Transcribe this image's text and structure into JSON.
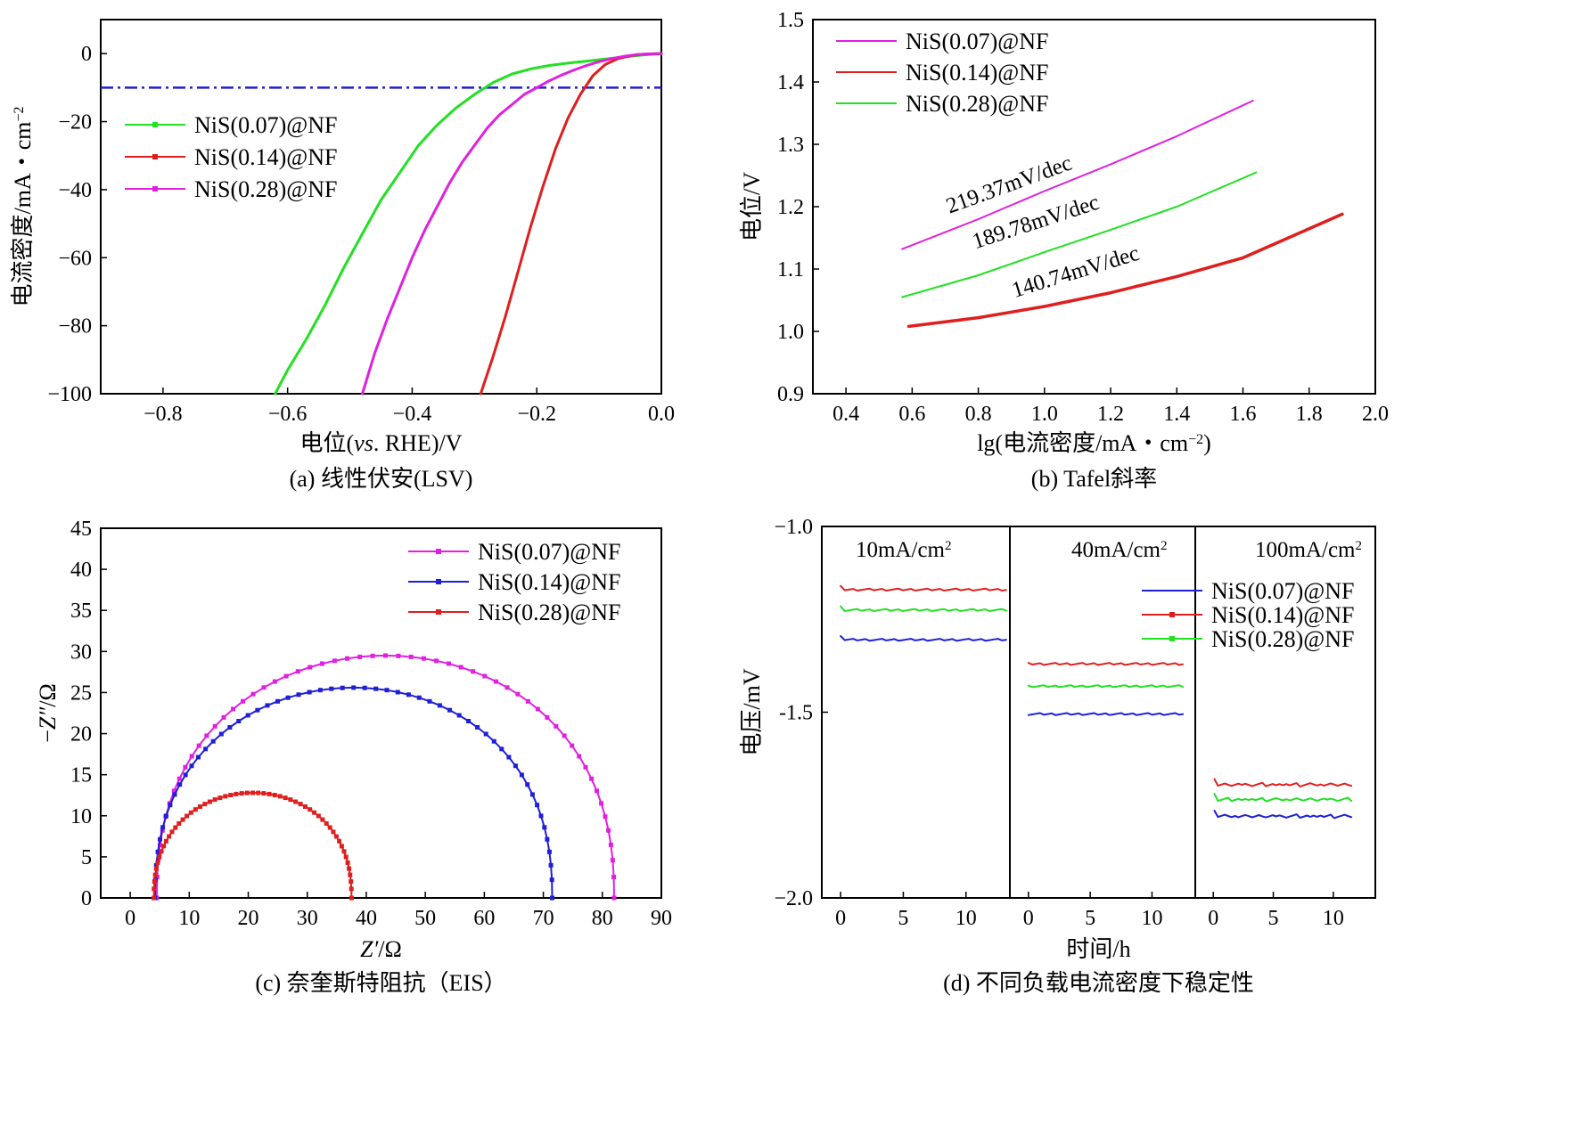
{
  "chart_data": [
    {
      "id": "a",
      "type": "line",
      "caption": "(a) 线性伏安(LSV)",
      "xlabel_pre": "电位(",
      "xlabel_it": "vs",
      "xlabel_post": ". RHE)/V",
      "ylabel_main": "电流密度/mA・cm",
      "ylabel_exp": "−2",
      "xlim": [
        -0.9,
        0.0
      ],
      "ylim": [
        -100,
        10
      ],
      "xticks": [
        -0.8,
        -0.6,
        -0.4,
        -0.2,
        0.0
      ],
      "xticklabels": [
        "−0.8",
        "−0.6",
        "−0.4",
        "−0.2",
        "0.0"
      ],
      "yticks": [
        0,
        -20,
        -40,
        -60,
        -80,
        -100
      ],
      "yticklabels": [
        "0",
        "−20",
        "−40",
        "−60",
        "−80",
        "−100"
      ],
      "reference_line": {
        "y": -10,
        "color": "#1f1fd6"
      },
      "legend": [
        "NiS(0.07)@NF",
        "NiS(0.14)@NF",
        "NiS(0.28)@NF"
      ],
      "series": [
        {
          "name": "NiS(0.07)@NF",
          "color": "#22e022",
          "x": [
            -0.62,
            -0.6,
            -0.57,
            -0.54,
            -0.51,
            -0.48,
            -0.45,
            -0.42,
            -0.39,
            -0.36,
            -0.33,
            -0.3,
            -0.27,
            -0.24,
            -0.21,
            -0.18,
            -0.15,
            -0.12,
            -0.09,
            -0.06,
            -0.03,
            0.0
          ],
          "y": [
            -100,
            -93,
            -84,
            -74,
            -63,
            -53,
            -43,
            -35,
            -27,
            -21,
            -16,
            -12,
            -8.5,
            -6,
            -4.5,
            -3.5,
            -2.8,
            -2.2,
            -1.6,
            -1.0,
            -0.4,
            0
          ]
        },
        {
          "name": "NiS(0.14)@NF",
          "color": "#e01e1e",
          "x": [
            -0.29,
            -0.27,
            -0.25,
            -0.23,
            -0.21,
            -0.19,
            -0.17,
            -0.15,
            -0.13,
            -0.11,
            -0.09,
            -0.07,
            -0.05,
            -0.03,
            -0.01,
            0.0
          ],
          "y": [
            -100,
            -89,
            -77,
            -64,
            -51,
            -39,
            -28,
            -19,
            -12,
            -6.5,
            -3.2,
            -1.5,
            -0.6,
            -0.2,
            0,
            0
          ]
        },
        {
          "name": "NiS(0.28)@NF",
          "color": "#e020e0",
          "x": [
            -0.48,
            -0.46,
            -0.44,
            -0.42,
            -0.4,
            -0.38,
            -0.36,
            -0.34,
            -0.32,
            -0.3,
            -0.28,
            -0.26,
            -0.24,
            -0.22,
            -0.2,
            -0.18,
            -0.16,
            -0.14,
            -0.12,
            -0.1,
            -0.08,
            -0.06,
            -0.04,
            -0.02,
            0.0
          ],
          "y": [
            -100,
            -88,
            -78,
            -69,
            -60,
            -52,
            -45,
            -38,
            -32,
            -27,
            -22,
            -18,
            -15,
            -12,
            -10,
            -8,
            -6.3,
            -4.8,
            -3.5,
            -2.4,
            -1.5,
            -0.8,
            -0.3,
            -0.1,
            0
          ]
        }
      ]
    },
    {
      "id": "b",
      "type": "line",
      "caption": "(b) Tafel斜率",
      "xlabel_main": "lg(电流密度/mA・cm",
      "xlabel_exp": "−2",
      "xlabel_close": ")",
      "ylabel": "电位/V",
      "xlim": [
        0.3,
        2.0
      ],
      "ylim": [
        0.9,
        1.5
      ],
      "xticks": [
        0.4,
        0.6,
        0.8,
        1.0,
        1.2,
        1.4,
        1.6,
        1.8,
        2.0
      ],
      "xticklabels": [
        "0.4",
        "0.6",
        "0.8",
        "1.0",
        "1.2",
        "1.4",
        "1.6",
        "1.8",
        "2.0"
      ],
      "yticks": [
        0.9,
        1.0,
        1.1,
        1.2,
        1.3,
        1.4,
        1.5
      ],
      "yticklabels": [
        "0.9",
        "1.0",
        "1.1",
        "1.2",
        "1.3",
        "1.4",
        "1.5"
      ],
      "legend": [
        "NiS(0.07)@NF",
        "NiS(0.14)@NF",
        "NiS(0.28)@NF"
      ],
      "legend_colors": [
        "#e020e0",
        "#e01e1e",
        "#22e022"
      ],
      "annotations": [
        "219.37mV/dec",
        "189.78mV/dec",
        "140.74mV/dec"
      ],
      "annotation_anchor": [
        [
          0.9,
          1.225
        ],
        [
          0.98,
          1.165
        ],
        [
          1.1,
          1.085
        ]
      ],
      "series": [
        {
          "name": "magenta",
          "color": "#e020e0",
          "x": [
            0.57,
            0.8,
            1.0,
            1.2,
            1.4,
            1.63
          ],
          "y": [
            1.132,
            1.18,
            1.225,
            1.268,
            1.313,
            1.37
          ]
        },
        {
          "name": "green",
          "color": "#22e022",
          "x": [
            0.57,
            0.8,
            1.0,
            1.2,
            1.4,
            1.64
          ],
          "y": [
            1.055,
            1.09,
            1.127,
            1.163,
            1.2,
            1.255
          ]
        },
        {
          "name": "red",
          "color": "#e01e1e",
          "x": [
            0.59,
            0.8,
            1.0,
            1.2,
            1.4,
            1.6,
            1.9
          ],
          "y": [
            1.008,
            1.022,
            1.04,
            1.062,
            1.088,
            1.118,
            1.188
          ]
        }
      ]
    },
    {
      "id": "c",
      "type": "scatter",
      "caption": "(c) 奈奎斯特阻抗（EIS）",
      "xlabel_it": "Z′",
      "xlabel_post": "/Ω",
      "ylabel_pre": "−",
      "ylabel_it": "Z″",
      "ylabel_post": "/Ω",
      "xlim": [
        -5,
        90
      ],
      "ylim": [
        0,
        45
      ],
      "xticks": [
        0,
        10,
        20,
        30,
        40,
        50,
        60,
        70,
        80,
        90
      ],
      "xticklabels": [
        "0",
        "10",
        "20",
        "30",
        "40",
        "50",
        "60",
        "70",
        "80",
        "90"
      ],
      "yticks": [
        0,
        5,
        10,
        15,
        20,
        25,
        30,
        35,
        40,
        45
      ],
      "yticklabels": [
        "0",
        "5",
        "10",
        "15",
        "20",
        "25",
        "30",
        "35",
        "40",
        "45"
      ],
      "legend": [
        "NiS(0.07)@NF",
        "NiS(0.14)@NF",
        "NiS(0.28)@NF"
      ],
      "legend_colors": [
        "#e020e0",
        "#1f1fd6",
        "#e01e1e"
      ],
      "series": [
        {
          "name": "magenta",
          "color": "#e020e0",
          "x0": 4.5,
          "x1": 82,
          "peak": 29.5,
          "peak_x": 43
        },
        {
          "name": "blue",
          "color": "#1f1fd6",
          "x0": 4.2,
          "x1": 71.5,
          "peak": 25.6,
          "peak_x": 38
        },
        {
          "name": "red",
          "color": "#e01e1e",
          "x0": 4.0,
          "x1": 37.5,
          "peak": 12.8,
          "peak_x": 21
        }
      ]
    },
    {
      "id": "d",
      "type": "line",
      "caption": "(d) 不同负载电流密度下稳定性",
      "xlabel": "时间/h",
      "ylabel": "电压/mV",
      "ylim": [
        -2.0,
        -1.0
      ],
      "yticks": [
        -1.0,
        -1.5,
        -2.0
      ],
      "yticklabels": [
        "−1.0",
        "-1.5",
        "−2.0"
      ],
      "panel_xlim": [
        -1.5,
        13.5
      ],
      "panel_xticks": [
        0,
        5,
        10
      ],
      "panel_xticklabels": [
        "0",
        "5",
        "10"
      ],
      "panel_label_main": [
        "10mA/cm",
        "40mA/cm",
        "100mA/cm"
      ],
      "panel_label_exp": "2",
      "legend": [
        "NiS(0.07)@NF",
        "NiS(0.14)@NF",
        "NiS(0.28)@NF"
      ],
      "legend_colors": [
        "#1f1fd6",
        "#e01e1e",
        "#22e022"
      ],
      "series": [
        {
          "name": "NiS(0.07)@NF",
          "color": "#1f1fd6",
          "levels": [
            -1.305,
            -1.505,
            -1.78
          ]
        },
        {
          "name": "NiS(0.14)@NF",
          "color": "#e01e1e",
          "levels": [
            -1.17,
            -1.37,
            -1.695
          ]
        },
        {
          "name": "NiS(0.28)@NF",
          "color": "#22e022",
          "levels": [
            -1.225,
            -1.43,
            -1.735
          ]
        }
      ]
    }
  ]
}
